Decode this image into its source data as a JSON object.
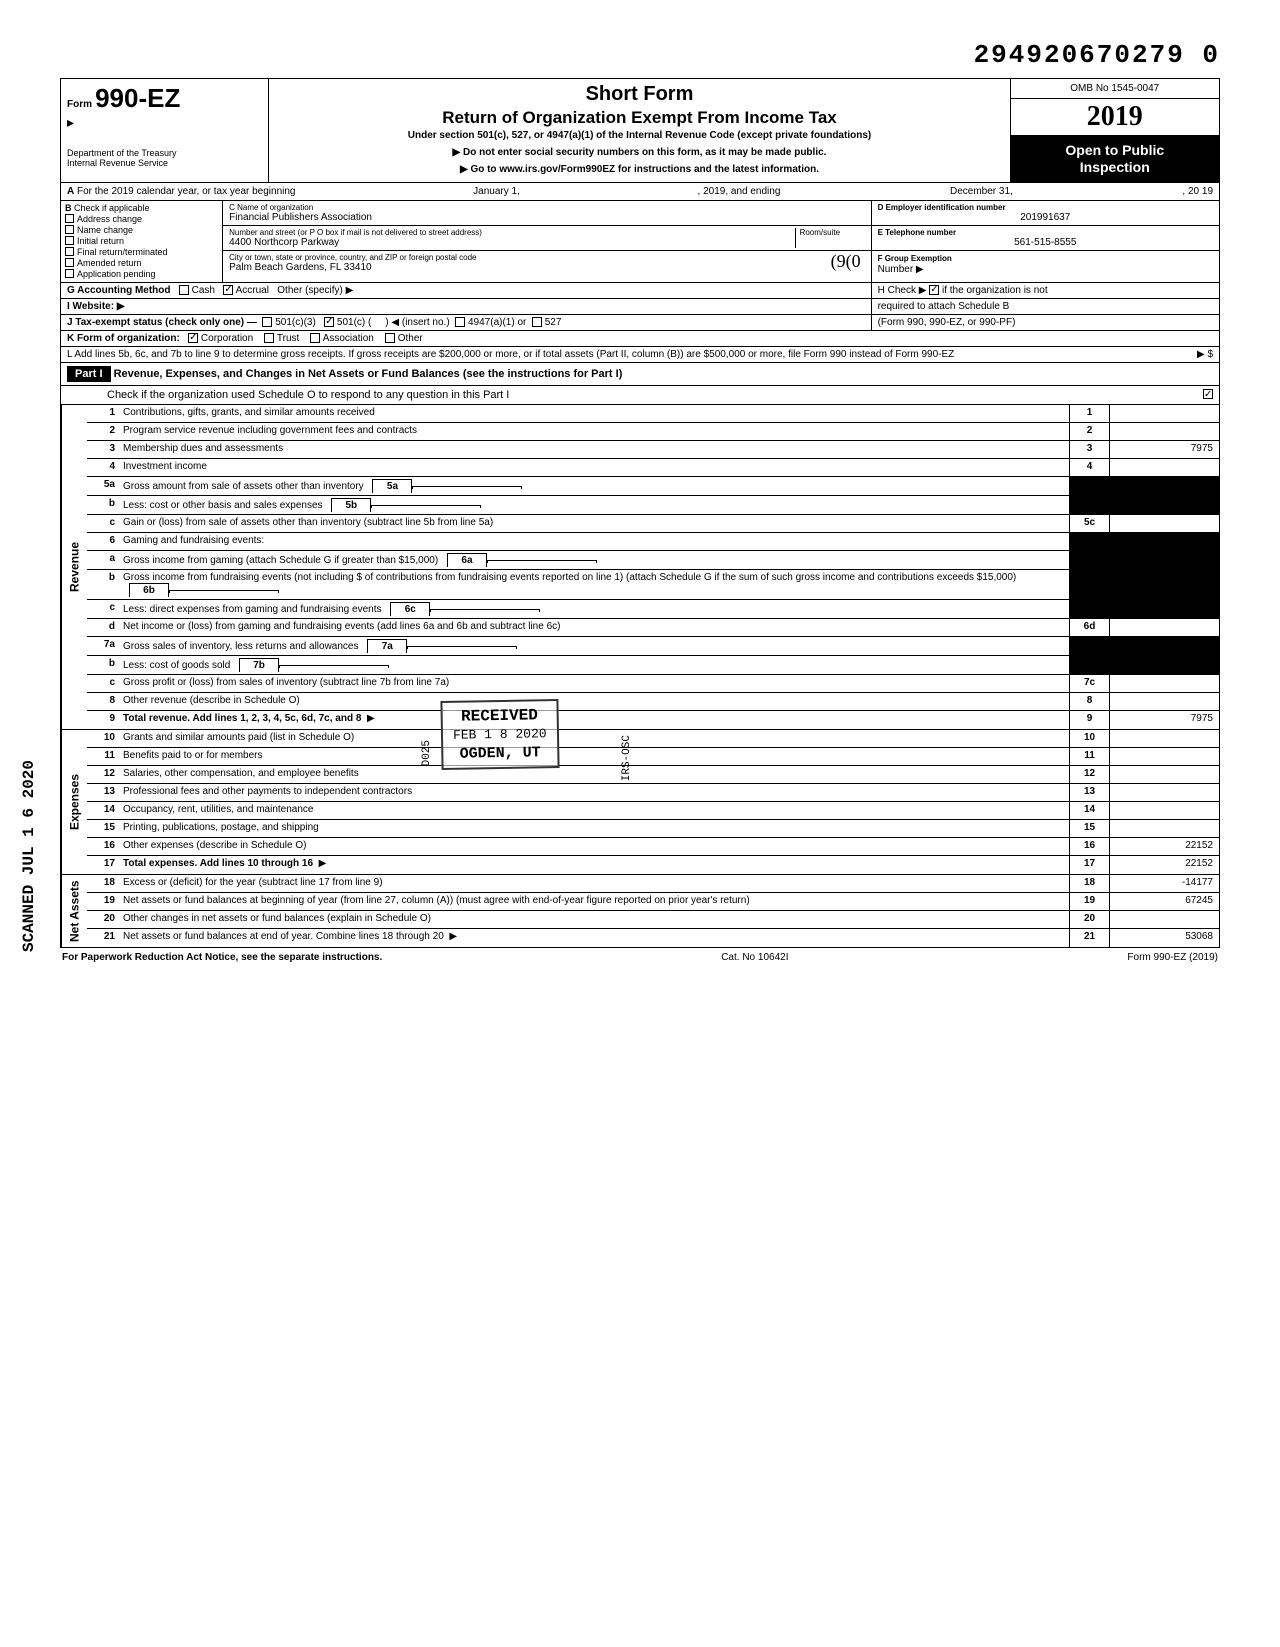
{
  "top_number": "294920670279 0",
  "header": {
    "form_label": "Form",
    "form_num": "990-EZ",
    "dept1": "Department of the Treasury",
    "dept2": "Internal Revenue Service",
    "short_form": "Short Form",
    "return_title": "Return of Organization Exempt From Income Tax",
    "sub_line": "Under section 501(c), 527, or 4947(a)(1) of the Internal Revenue Code (except private foundations)",
    "arrow1": "▶ Do not enter social security numbers on this form, as it may be made public.",
    "arrow2": "▶ Go to www.irs.gov/Form990EZ for instructions and the latest information.",
    "omb": "OMB No 1545-0047",
    "year": "2019",
    "open1": "Open to Public",
    "open2": "Inspection"
  },
  "rowA": {
    "label_a": "A",
    "text1": "For the 2019 calendar year, or tax year beginning",
    "begin": "January 1,",
    "mid": ", 2019, and ending",
    "end": "December 31,",
    "yr": ", 20   19"
  },
  "colB": {
    "header": "B",
    "check_if": "Check if applicable",
    "opts": [
      "Address change",
      "Name change",
      "Initial return",
      "Final return/terminated",
      "Amended return",
      "Application pending"
    ]
  },
  "colC": {
    "c_label": "C  Name of organization",
    "c_val": "Financial Publishers Association",
    "addr_label": "Number and street (or P O  box if mail is not delivered to street address)",
    "room": "Room/suite",
    "addr_val": "4400 Northcorp Parkway",
    "city_label": "City or town, state or province, country, and ZIP or foreign postal code",
    "city_val": "Palm Beach Gardens, FL   33410"
  },
  "colD": {
    "d_label": "D Employer identification number",
    "d_val": "201991637",
    "e_label": "E  Telephone number",
    "e_val": "561-515-8555",
    "f_label": "F  Group Exemption",
    "f_val": "Number ▶"
  },
  "rowG": {
    "g_label": "G  Accounting Method",
    "cash": "Cash",
    "accrual": "Accrual",
    "other": "Other (specify) ▶",
    "i_label": "I   Website: ▶",
    "j_label": "J  Tax-exempt status (check only one) —",
    "j_1": "501(c)(3)",
    "j_2": "501(c) (",
    "j_3": ") ◀ (insert no.)",
    "j_4": "4947(a)(1) or",
    "j_5": "527",
    "k_label": "K  Form of organization:",
    "k_1": "Corporation",
    "k_2": "Trust",
    "k_3": "Association",
    "k_4": "Other",
    "l_text": "L  Add lines 5b, 6c, and 7b to line 9 to determine gross receipts. If gross receipts are $200,000 or more, or if total assets (Part II, column (B)) are $500,000 or more, file Form 990 instead of Form 990-EZ",
    "l_arrow": "▶   $"
  },
  "rowH": {
    "h_text1": "H  Check ▶",
    "h_text2": "if the organization is not",
    "h_text3": "required to attach Schedule B",
    "h_text4": "(Form 990, 990-EZ, or 990-PF)"
  },
  "part1": {
    "label": "Part I",
    "title": "Revenue, Expenses, and Changes in Net Assets or Fund Balances (see the instructions for Part I)",
    "check_line": "Check if the organization used Schedule O to respond to any question in this Part I"
  },
  "sections": {
    "revenue": "Revenue",
    "expenses": "Expenses",
    "netassets": "Net Assets"
  },
  "lines": [
    {
      "n": "1",
      "t": "Contributions, gifts, grants, and similar amounts received",
      "box": "1",
      "amt": ""
    },
    {
      "n": "2",
      "t": "Program service revenue including government fees and contracts",
      "box": "2",
      "amt": ""
    },
    {
      "n": "3",
      "t": "Membership dues and assessments",
      "box": "3",
      "amt": "7975"
    },
    {
      "n": "4",
      "t": "Investment income",
      "box": "4",
      "amt": ""
    },
    {
      "n": "5a",
      "t": "Gross amount from sale of assets other than inventory",
      "ibox": "5a"
    },
    {
      "n": "b",
      "t": "Less: cost or other basis and sales expenses",
      "ibox": "5b"
    },
    {
      "n": "c",
      "t": "Gain or (loss) from sale of assets other than inventory (subtract line 5b from line 5a)",
      "box": "5c",
      "amt": ""
    },
    {
      "n": "6",
      "t": "Gaming and fundraising events:"
    },
    {
      "n": "a",
      "t": "Gross income from gaming (attach Schedule G if greater than $15,000)",
      "ibox": "6a"
    },
    {
      "n": "b",
      "t": "Gross income from fundraising events (not including  $                   of contributions from fundraising events reported on line 1) (attach Schedule G if the sum of such gross income and contributions exceeds $15,000)",
      "ibox": "6b"
    },
    {
      "n": "c",
      "t": "Less: direct expenses from gaming and fundraising events",
      "ibox": "6c"
    },
    {
      "n": "d",
      "t": "Net income or (loss) from gaming and fundraising events (add lines 6a and 6b and subtract line 6c)",
      "box": "6d",
      "amt": ""
    },
    {
      "n": "7a",
      "t": "Gross sales of inventory, less returns and allowances",
      "ibox": "7a"
    },
    {
      "n": "b",
      "t": "Less: cost of goods sold",
      "ibox": "7b"
    },
    {
      "n": "c",
      "t": "Gross profit or (loss) from sales of inventory (subtract line 7b from line 7a)",
      "box": "7c",
      "amt": ""
    },
    {
      "n": "8",
      "t": "Other revenue (describe in Schedule O)",
      "box": "8",
      "amt": ""
    },
    {
      "n": "9",
      "t": "Total revenue. Add lines 1, 2, 3, 4, 5c, 6d, 7c, and 8",
      "box": "9",
      "amt": "7975",
      "bold": true,
      "arrow": true
    }
  ],
  "exp_lines": [
    {
      "n": "10",
      "t": "Grants and similar amounts paid (list in Schedule O)",
      "box": "10",
      "amt": ""
    },
    {
      "n": "11",
      "t": "Benefits paid to or for members",
      "box": "11",
      "amt": ""
    },
    {
      "n": "12",
      "t": "Salaries, other compensation, and employee benefits",
      "box": "12",
      "amt": ""
    },
    {
      "n": "13",
      "t": "Professional fees and other payments to independent contractors",
      "box": "13",
      "amt": ""
    },
    {
      "n": "14",
      "t": "Occupancy, rent, utilities, and maintenance",
      "box": "14",
      "amt": ""
    },
    {
      "n": "15",
      "t": "Printing, publications, postage, and shipping",
      "box": "15",
      "amt": ""
    },
    {
      "n": "16",
      "t": "Other expenses (describe in Schedule O)",
      "box": "16",
      "amt": "22152"
    },
    {
      "n": "17",
      "t": "Total expenses. Add lines 10 through 16",
      "box": "17",
      "amt": "22152",
      "bold": true,
      "arrow": true
    }
  ],
  "na_lines": [
    {
      "n": "18",
      "t": "Excess or (deficit) for the year (subtract line 17 from line 9)",
      "box": "18",
      "amt": "-14177"
    },
    {
      "n": "19",
      "t": "Net assets or fund balances at beginning of year (from line 27, column (A)) (must agree with end-of-year figure reported on prior year's return)",
      "box": "19",
      "amt": "67245"
    },
    {
      "n": "20",
      "t": "Other changes in net assets or fund balances (explain in Schedule O)",
      "box": "20",
      "amt": ""
    },
    {
      "n": "21",
      "t": "Net assets or fund balances at end of year. Combine lines 18 through 20",
      "box": "21",
      "amt": "53068",
      "arrow": true
    }
  ],
  "footer": {
    "left": "For Paperwork Reduction Act Notice, see the separate instructions.",
    "mid": "Cat. No  10642I",
    "right": "Form 990-EZ (2019)"
  },
  "stamps": {
    "received": "RECEIVED",
    "date": "FEB 1 8 2020",
    "ogden": "OGDEN, UT",
    "d025": "D025",
    "irsosc": "IRS-OSC",
    "scanned": "SCANNED  JUL 1 6 2020"
  }
}
